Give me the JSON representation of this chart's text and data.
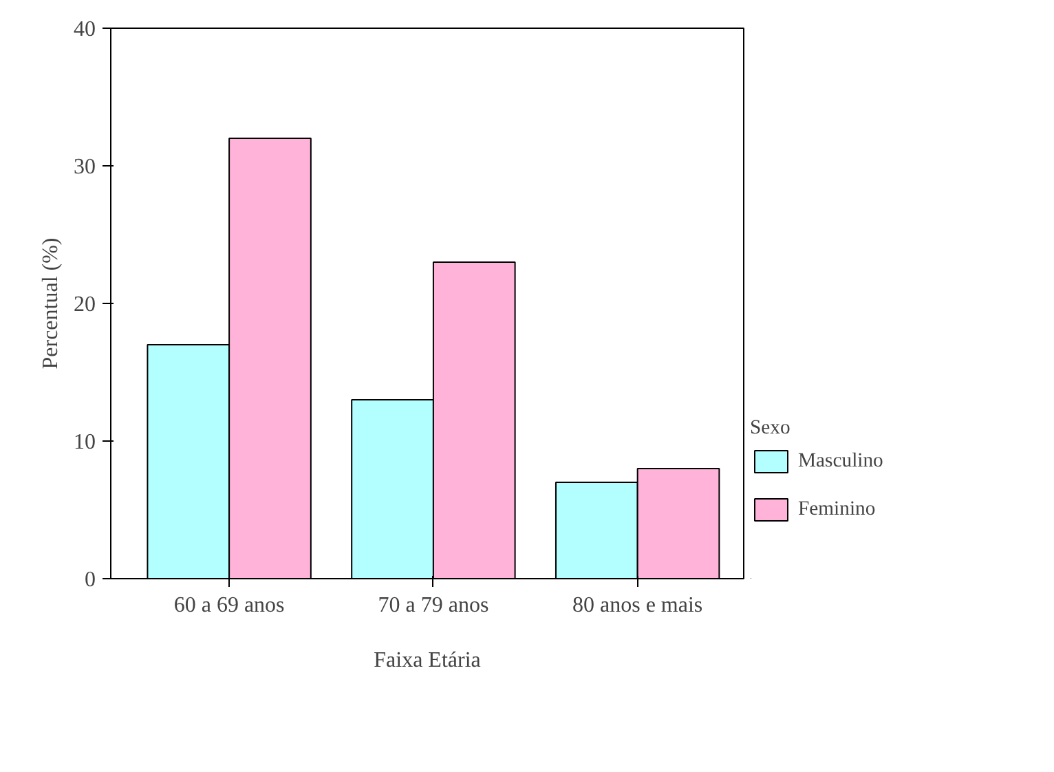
{
  "chart_data": {
    "type": "bar",
    "xlabel": "Faixa Etária",
    "ylabel": "Percentual (%)",
    "legend_title": "Sexo",
    "categories": [
      "60 a 69 anos",
      "70 a 79 anos",
      "80 anos e mais"
    ],
    "series": [
      {
        "name": "Masculino",
        "color": "#b3ffff",
        "values": [
          17,
          13,
          7
        ]
      },
      {
        "name": "Feminino",
        "color": "#ffb3d9",
        "values": [
          32,
          23,
          8
        ]
      }
    ],
    "ylim": [
      0,
      40
    ],
    "yticks": [
      0,
      10,
      20,
      30,
      40
    ],
    "grid": false,
    "legend": "right"
  }
}
